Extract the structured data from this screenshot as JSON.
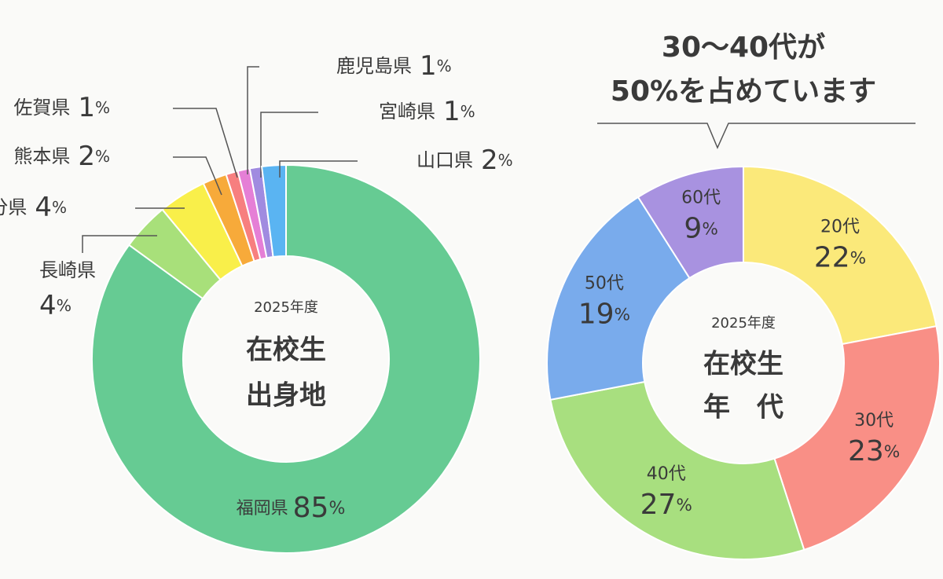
{
  "chart_data": [
    {
      "type": "donut",
      "center_text": [
        "2025年度",
        "在校生",
        "出身地"
      ],
      "unit": "%",
      "categories": [
        "福岡県",
        "長崎県",
        "大分県",
        "熊本県",
        "佐賀県",
        "鹿児島県",
        "宮崎県",
        "山口県"
      ],
      "values": [
        85,
        4,
        4,
        2,
        1,
        1,
        1,
        2
      ],
      "colors": [
        "#66cb93",
        "#a8e07a",
        "#f9ef4a",
        "#f7aa3a",
        "#f77f7f",
        "#e57fd6",
        "#a08be0",
        "#5ab4f2"
      ]
    },
    {
      "type": "donut",
      "annotation": [
        "30〜40代が",
        "50%を占めています"
      ],
      "center_text": [
        "2025年度",
        "在校生",
        "年　代"
      ],
      "unit": "%",
      "categories": [
        "20代",
        "30代",
        "40代",
        "50代",
        "60代"
      ],
      "values": [
        22,
        23,
        27,
        19,
        9
      ],
      "colors": [
        "#fbe97a",
        "#f98f86",
        "#a8df7f",
        "#79abec",
        "#a892e0"
      ]
    }
  ]
}
